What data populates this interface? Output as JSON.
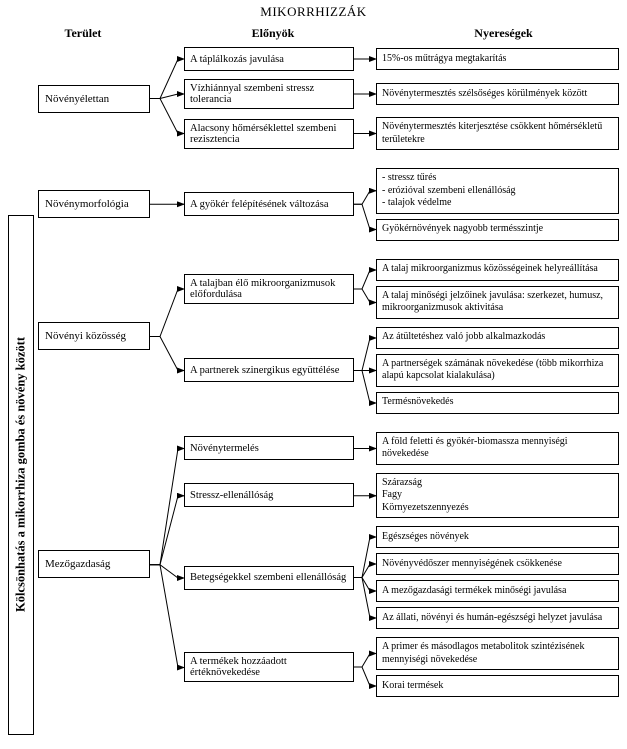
{
  "title": "MIKORRHIZZÁK",
  "headers": {
    "area": "Terület",
    "advantages": "Előnyök",
    "gains": "Nyereségek"
  },
  "side_label": "Kölcsönhatás a mikorrhiza gomba és növény között",
  "colors": {
    "line": "#000000",
    "bg": "#ffffff"
  },
  "groups": [
    {
      "area": "Növényélettan",
      "items": [
        {
          "adv": "A táplálkozás javulása",
          "gains": [
            "15%-os műtrágya megtakarítás"
          ]
        },
        {
          "adv": "Vízhiánnyal szembeni stressz tolerancia",
          "gains": [
            "Növénytermesztés szélsőséges körülmények között"
          ]
        },
        {
          "adv": "Alacsony hőmérséklettel szembeni rezisztencia",
          "gains": [
            "Növénytermesztés kiterjesztése csökkent hőmérsékletű területekre"
          ]
        }
      ]
    },
    {
      "area": "Növénymorfológia",
      "items": [
        {
          "adv": "A gyökér felépítésének változása",
          "gains": [
            "- stressz tűrés\n- erózióval szembeni ellenállóság\n- talajok védelme",
            "Gyökérnövények nagyobb termésszintje"
          ]
        }
      ]
    },
    {
      "area": "Növényi közösség",
      "items": [
        {
          "adv": "A talajban élő mikroorganizmusok előfordulása",
          "gains": [
            "A talaj mikroorganizmus közösségeinek helyreállítása",
            "A talaj minőségi jelzőinek javulása: szerkezet, humusz, mikroorganizmusok aktivitása"
          ]
        },
        {
          "adv": "A partnerek szinergikus együttélése",
          "gains": [
            "Az átültetéshez való jobb alkalmazkodás",
            "A partnerségek számának növekedése (több mikorrhiza alapú kapcsolat kialakulása)",
            "Termésnövekedés"
          ]
        }
      ]
    },
    {
      "area": "Mezőgazdaság",
      "items": [
        {
          "adv": "Növénytermelés",
          "gains": [
            "A föld feletti és gyökér-biomassza mennyiségi növekedése"
          ]
        },
        {
          "adv": "Stressz-ellenállóság",
          "gains": [
            "Szárazság\nFagy\nKörnyezetszennyezés"
          ]
        },
        {
          "adv": "Betegségekkel szembeni ellenállóság",
          "gains": [
            "Egészséges növények",
            "Növényvédőszer mennyiségének csökkenése",
            "A mezőgazdasági termékek minőségi javulása",
            "Az állati, növényi és humán-egészségi helyzet javulása"
          ]
        },
        {
          "adv": "A termékek hozzáadott értéknövekedése",
          "gains": [
            "A primer és másodlagos metabolitok szintézisének mennyiségi növekedése",
            "Korai termések"
          ]
        }
      ]
    }
  ]
}
